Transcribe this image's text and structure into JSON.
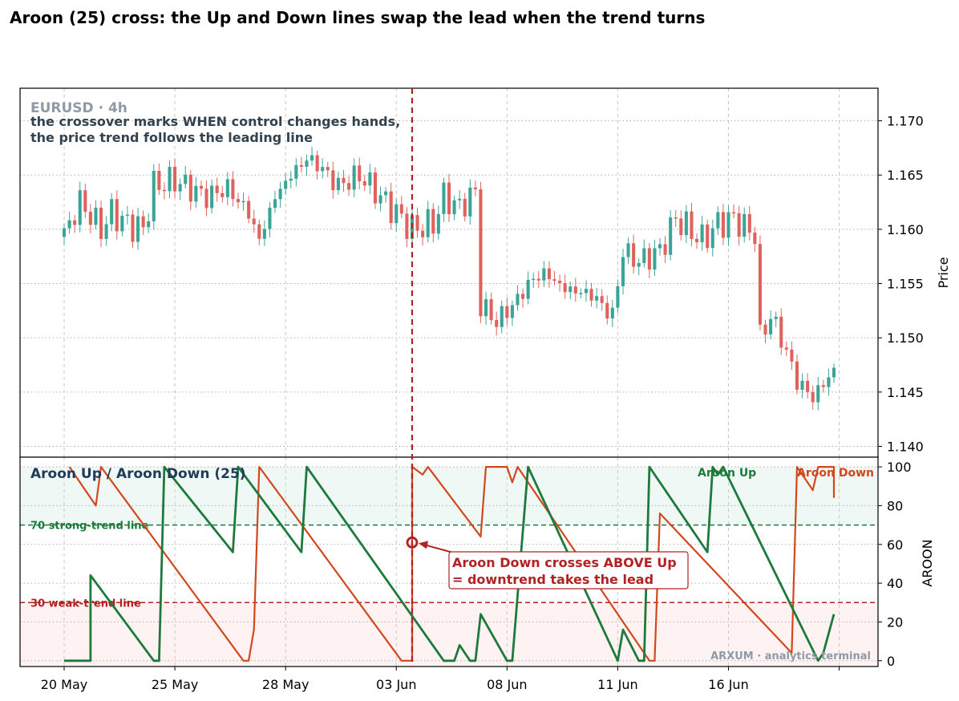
{
  "title": "Aroon (25) cross: the Up and Down lines swap the lead when the trend turns",
  "colors": {
    "up_candle": "#3aa597",
    "down_candle": "#e0625c",
    "aroon_up": "#1e7a3c",
    "aroon_down": "#d2481c",
    "cross_marker": "#b22222",
    "title_dark": "#1f3b57",
    "muted": "#8e9aa6"
  },
  "price_panel": {
    "symbol": "EURUSD · 4h",
    "annotation_line1": "the crossover marks WHEN control changes hands,",
    "annotation_line2": "the price trend follows the leading line",
    "ylabel": "Price",
    "yticks": [
      "1.140",
      "1.145",
      "1.150",
      "1.155",
      "1.160",
      "1.165",
      "1.170"
    ]
  },
  "aroon_panel": {
    "title": "Aroon Up / Aroon Down (25)",
    "ylabel": "AROON",
    "yticks": [
      "0",
      "20",
      "40",
      "60",
      "80",
      "100"
    ],
    "legend_up": "Aroon Up",
    "legend_down": "Aroon Down",
    "strong_line_label": "70  strong-trend line",
    "weak_line_label": "30  weak-trend line",
    "cross_label_line1": "Aroon Down crosses ABOVE Up",
    "cross_label_line2": "= downtrend takes the lead",
    "watermark": "ARXUM · analytics terminal"
  },
  "x_ticks": [
    "20 May",
    "25 May",
    "28 May",
    "03 Jun",
    "08 Jun",
    "11 Jun",
    "16 Jun"
  ],
  "chart_data": {
    "type": "candlestick",
    "bar_count": 147,
    "crossover_bar": 66,
    "x_tick_bars": [
      0,
      21,
      42,
      63,
      84,
      105,
      126
    ],
    "price_ylim": [
      1.139,
      1.173
    ],
    "aroon_ylim": [
      -3,
      105
    ],
    "reference_lines": [
      70,
      30
    ],
    "price_anchors": [
      [
        0,
        1.1595
      ],
      [
        3,
        1.1625
      ],
      [
        7,
        1.16
      ],
      [
        9,
        1.1615
      ],
      [
        12,
        1.1605
      ],
      [
        15,
        1.16
      ],
      [
        17,
        1.164
      ],
      [
        21,
        1.1645
      ],
      [
        27,
        1.163
      ],
      [
        31,
        1.1638
      ],
      [
        35,
        1.1615
      ],
      [
        37,
        1.159
      ],
      [
        40,
        1.163
      ],
      [
        43,
        1.165
      ],
      [
        46,
        1.1665
      ],
      [
        48,
        1.166
      ],
      [
        52,
        1.164
      ],
      [
        56,
        1.165
      ],
      [
        60,
        1.163
      ],
      [
        63,
        1.1615
      ],
      [
        66,
        1.16
      ],
      [
        70,
        1.1605
      ],
      [
        72,
        1.163
      ],
      [
        75,
        1.162
      ],
      [
        78,
        1.1635
      ],
      [
        79,
        1.153
      ],
      [
        82,
        1.1515
      ],
      [
        86,
        1.1535
      ],
      [
        88,
        1.155
      ],
      [
        91,
        1.156
      ],
      [
        95,
        1.1545
      ],
      [
        100,
        1.154
      ],
      [
        104,
        1.152
      ],
      [
        106,
        1.158
      ],
      [
        109,
        1.157
      ],
      [
        113,
        1.158
      ],
      [
        116,
        1.161
      ],
      [
        121,
        1.159
      ],
      [
        124,
        1.1605
      ],
      [
        127,
        1.161
      ],
      [
        131,
        1.1595
      ],
      [
        132,
        1.15
      ],
      [
        134,
        1.152
      ],
      [
        136,
        1.15
      ],
      [
        139,
        1.146
      ],
      [
        142,
        1.1445
      ],
      [
        146,
        1.147
      ]
    ],
    "aroon_up": [
      [
        0,
        0
      ],
      [
        5,
        0
      ],
      [
        5,
        44
      ],
      [
        17,
        0
      ],
      [
        18,
        0
      ],
      [
        19,
        100
      ],
      [
        32,
        56
      ],
      [
        33,
        100
      ],
      [
        45,
        56
      ],
      [
        46,
        100
      ],
      [
        72,
        0
      ],
      [
        74,
        0
      ],
      [
        75,
        8
      ],
      [
        76,
        4
      ],
      [
        77,
        0
      ],
      [
        78,
        0
      ],
      [
        79,
        24
      ],
      [
        84,
        0
      ],
      [
        85,
        0
      ],
      [
        88,
        100
      ],
      [
        105,
        0
      ],
      [
        106,
        16
      ],
      [
        109,
        0
      ],
      [
        110,
        0
      ],
      [
        111,
        100
      ],
      [
        122,
        56
      ],
      [
        123,
        100
      ],
      [
        124,
        96
      ],
      [
        125,
        100
      ],
      [
        143,
        0
      ],
      [
        144,
        4
      ],
      [
        146,
        24
      ]
    ],
    "aroon_down": [
      [
        1,
        100
      ],
      [
        6,
        80
      ],
      [
        7,
        100
      ],
      [
        34,
        0
      ],
      [
        35,
        0
      ],
      [
        36,
        16
      ],
      [
        37,
        100
      ],
      [
        64,
        0
      ],
      [
        66,
        0
      ],
      [
        66,
        100
      ],
      [
        68,
        96
      ],
      [
        69,
        100
      ],
      [
        79,
        64
      ],
      [
        80,
        100
      ],
      [
        84,
        100
      ],
      [
        85,
        92
      ],
      [
        86,
        100
      ],
      [
        111,
        0
      ],
      [
        112,
        0
      ],
      [
        113,
        76
      ],
      [
        138,
        4
      ],
      [
        139,
        100
      ],
      [
        142,
        88
      ],
      [
        143,
        100
      ],
      [
        146,
        100
      ],
      [
        146,
        84
      ]
    ]
  }
}
